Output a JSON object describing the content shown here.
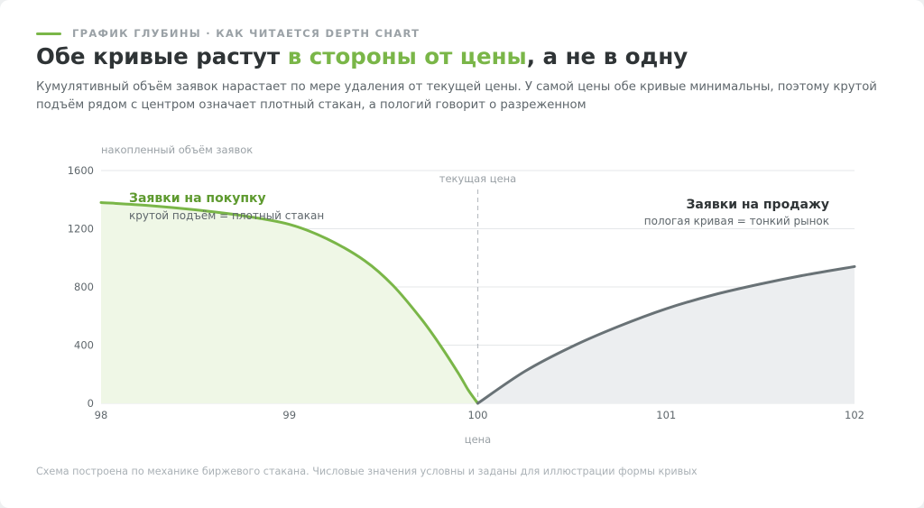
{
  "header": {
    "kicker": "ГРАФИК ГЛУБИНЫ · КАК ЧИТАЕТСЯ DEPTH CHART",
    "title_before": "Обе кривые растут ",
    "title_accent": "в стороны от цены",
    "title_after": ", а не в одну",
    "subtitle": "Кумулятивный объём заявок нарастает по мере удаления от текущей цены. У самой цены обе кривые минимальны, поэтому крутой подъём рядом с центром означает плотный стакан, а пологий говорит о разреженном"
  },
  "footnote": "Схема построена по механике биржевого стакана. Числовые значения условны и заданы для иллюстрации формы кривых",
  "colors": {
    "buy": "#7ab648",
    "buy_fill": "#eff7e6",
    "sell": "#697276",
    "sell_fill": "#eceef0",
    "grid": "#e4e7e9",
    "axis_text": "#5f676c",
    "muted": "#9aa1a6"
  },
  "chart_data": {
    "type": "area",
    "xlabel": "цена",
    "ylabel": "накопленный объём заявок",
    "xlim": [
      98,
      102
    ],
    "ylim": [
      0,
      1600
    ],
    "x_ticks": [
      98,
      99,
      100,
      101,
      102
    ],
    "y_ticks": [
      0,
      400,
      800,
      1200,
      1600
    ],
    "grid": true,
    "current_price": {
      "x": 100,
      "label": "текущая цена"
    },
    "series": [
      {
        "name": "Заявки на покупку",
        "note": "крутой подъём = плотный стакан",
        "x": [
          98,
          98.25,
          98.5,
          98.75,
          99,
          99.2,
          99.4,
          99.55,
          99.7,
          99.8,
          99.9,
          99.95,
          100
        ],
        "y": [
          1380,
          1360,
          1330,
          1290,
          1230,
          1130,
          980,
          810,
          580,
          400,
          200,
          90,
          0
        ]
      },
      {
        "name": "Заявки на продажу",
        "note": "пологая кривая = тонкий рынок",
        "x": [
          100,
          100.25,
          100.5,
          100.75,
          101,
          101.25,
          101.5,
          101.75,
          102
        ],
        "y": [
          0,
          220,
          390,
          530,
          650,
          745,
          820,
          885,
          940
        ]
      }
    ]
  }
}
